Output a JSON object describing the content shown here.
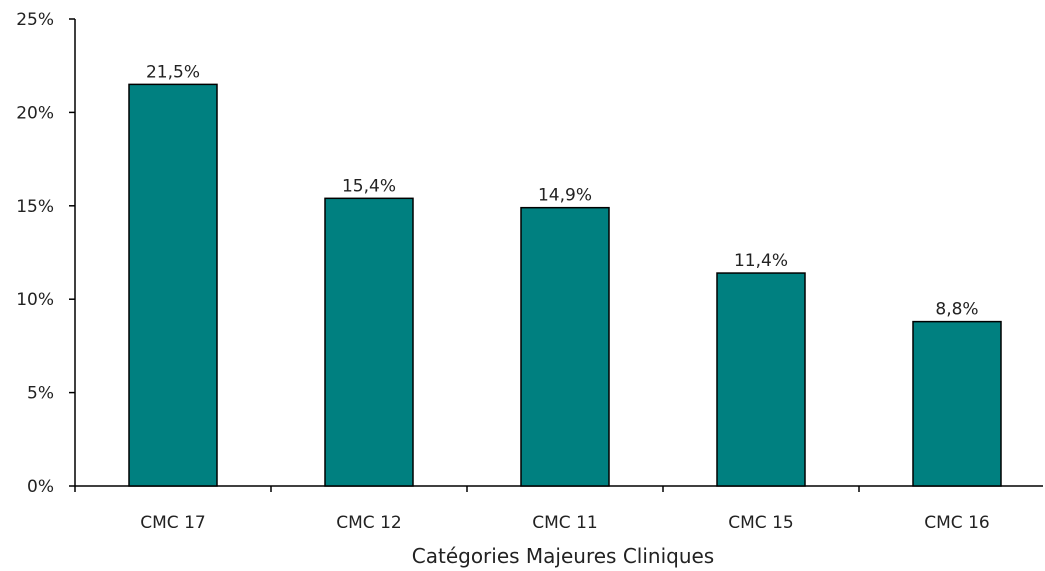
{
  "chart_data": {
    "type": "bar",
    "title": "",
    "xlabel": "Catégories Majeures Cliniques",
    "ylabel": "",
    "categories": [
      "CMC 17",
      "CMC 12",
      "CMC 11",
      "CMC 15",
      "CMC 16"
    ],
    "values": [
      21.5,
      15.4,
      14.9,
      11.4,
      8.8
    ],
    "data_labels": [
      "21,5%",
      "15,4%",
      "14,9%",
      "11,4%",
      "8,8%"
    ],
    "ylim": [
      0,
      25
    ],
    "yticks": [
      0,
      5,
      10,
      15,
      20,
      25
    ],
    "ytick_labels": [
      "0%",
      "5%",
      "10%",
      "15%",
      "20%",
      "25%"
    ],
    "grid": false,
    "legend": "none",
    "colors": {
      "bar": "#008080",
      "bar_stroke": "#000000",
      "axis": "#000000"
    }
  }
}
